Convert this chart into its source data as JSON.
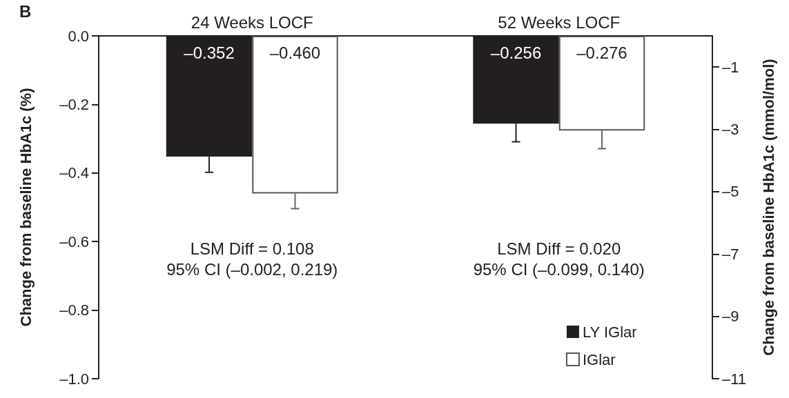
{
  "chart_data": {
    "type": "bar",
    "categories": [
      "24 Weeks LOCF",
      "52 Weeks LOCF"
    ],
    "series": [
      {
        "name": "LY IGlar",
        "color": "#231f20",
        "values": [
          -0.352,
          -0.256
        ],
        "value_labels": [
          "–0.352",
          "–0.256"
        ],
        "errors": [
          [
            -0.398,
            -0.352
          ],
          [
            -0.309,
            -0.256
          ]
        ]
      },
      {
        "name": "IGlar",
        "color": "#ffffff",
        "values": [
          -0.46,
          -0.276
        ],
        "value_labels": [
          "–0.460",
          "–0.276"
        ],
        "errors": [
          [
            -0.504,
            -0.46
          ],
          [
            -0.329,
            -0.276
          ]
        ]
      }
    ],
    "ylabel": "Change from baseline HbA1c (%)",
    "y2label": "Change from baseline HbA1c (mmol/mol)",
    "ylim": [
      -1.0,
      0.0
    ],
    "yticks": [
      {
        "value": -1.0,
        "label": "–1.0"
      },
      {
        "value": -0.8,
        "label": "–0.8"
      },
      {
        "value": -0.6,
        "label": "–0.6"
      },
      {
        "value": -0.4,
        "label": "–0.4"
      },
      {
        "value": -0.2,
        "label": "–0.2"
      },
      {
        "value": 0.0,
        "label": "0.0"
      }
    ],
    "y2lim": [
      -11,
      0
    ],
    "y2ticks": [
      {
        "value": -11,
        "label": "–11"
      },
      {
        "value": -9,
        "label": "–9"
      },
      {
        "value": -7,
        "label": "–7"
      },
      {
        "value": -5,
        "label": "–5"
      },
      {
        "value": -3,
        "label": "–3"
      },
      {
        "value": -1,
        "label": "–1"
      }
    ],
    "annotations": [
      "B",
      "LSM Diff = 0.108\n95% CI (–0.002, 0.219)",
      "LSM Diff = 0.020\n95% CI (–0.099, 0.140)"
    ],
    "legend": "bottom right",
    "grid": false
  }
}
